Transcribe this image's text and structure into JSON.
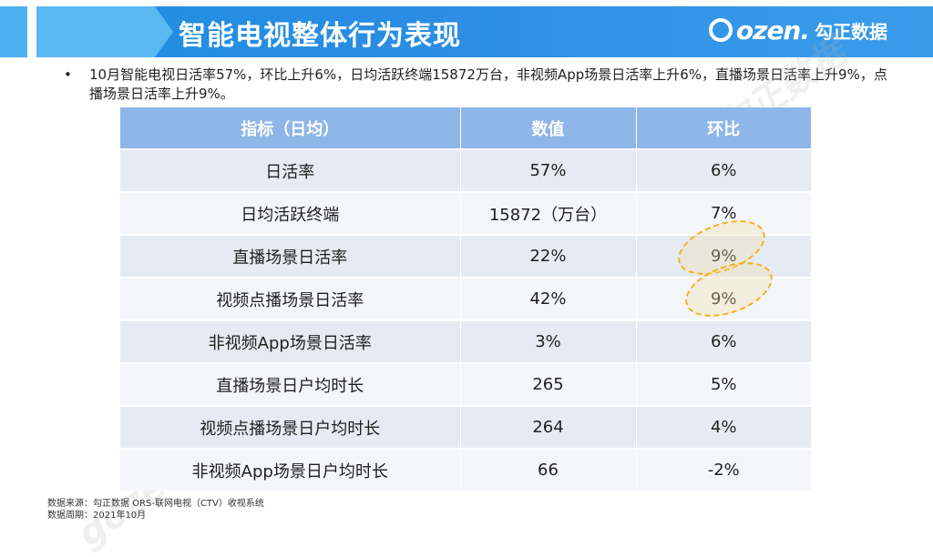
{
  "header": {
    "title": "智能电视整体行为表现",
    "logo_word": "ozen.",
    "logo_cn": "勾正数据"
  },
  "summary": {
    "bullet": "•",
    "text": "10月智能电视日活率57%，环比上升6%，日均活跃终端15872万台，非视频App场景日活率上升6%，直播场景日活率上升9%，点播场景日活率上升9%。"
  },
  "watermark": "gozen.勾正数据",
  "table": {
    "headers": [
      "指标（日均）",
      "数值",
      "环比"
    ],
    "rows": [
      {
        "metric": "日活率",
        "value": "57%",
        "change": "6%"
      },
      {
        "metric": "日均活跃终端",
        "value": "15872（万台）",
        "change": "7%"
      },
      {
        "metric": "直播场景日活率",
        "value": "22%",
        "change": "9%"
      },
      {
        "metric": "视频点播场景日活率",
        "value": "42%",
        "change": "9%"
      },
      {
        "metric": "非视频App场景日活率",
        "value": "3%",
        "change": "6%"
      },
      {
        "metric": "直播场景日户均时长",
        "value": "265",
        "change": "5%"
      },
      {
        "metric": "视频点播场景日户均时长",
        "value": "264",
        "change": "4%"
      },
      {
        "metric": "非视频App场景日户均时长",
        "value": "66",
        "change": "-2%"
      }
    ]
  },
  "footer": {
    "source": "数据来源：勾正数据 ORS-联网电视（CTV）收视系统",
    "period": "数据周期：2021年10月"
  },
  "colors": {
    "banner": "#2a8de3",
    "table_header": "#8fb6e8",
    "row_odd": "#e6ebf3",
    "row_even": "#f4f6fa",
    "highlight": "#f2b21c"
  }
}
